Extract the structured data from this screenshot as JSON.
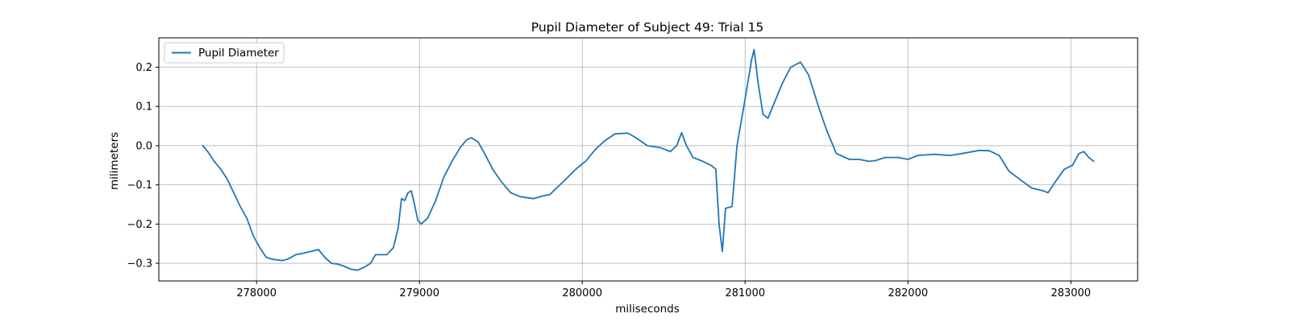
{
  "chart_data": {
    "type": "line",
    "title": "Pupil Diameter of Subject 49: Trial 15",
    "xlabel": "miliseconds",
    "ylabel": "milimeters",
    "xlim": [
      277400,
      283410
    ],
    "ylim": [
      -0.345,
      0.275
    ],
    "x_ticks": [
      278000,
      279000,
      280000,
      281000,
      282000,
      283000
    ],
    "y_ticks": [
      -0.3,
      -0.2,
      -0.1,
      0.0,
      0.1,
      0.2
    ],
    "x_tick_labels": [
      "278000",
      "279000",
      "280000",
      "281000",
      "282000",
      "283000"
    ],
    "y_tick_labels": [
      "−0.3",
      "−0.2",
      "−0.1",
      "0.0",
      "0.1",
      "0.2"
    ],
    "grid": true,
    "legend_position": "top-left",
    "series": [
      {
        "name": "Pupil Diameter",
        "color": "#1f77b4",
        "points": [
          [
            277670,
            0.0
          ],
          [
            277700,
            -0.015
          ],
          [
            277740,
            -0.04
          ],
          [
            277780,
            -0.06
          ],
          [
            277820,
            -0.085
          ],
          [
            277860,
            -0.12
          ],
          [
            277900,
            -0.155
          ],
          [
            277940,
            -0.185
          ],
          [
            277980,
            -0.23
          ],
          [
            278020,
            -0.26
          ],
          [
            278060,
            -0.285
          ],
          [
            278100,
            -0.29
          ],
          [
            278160,
            -0.293
          ],
          [
            278200,
            -0.288
          ],
          [
            278240,
            -0.278
          ],
          [
            278280,
            -0.275
          ],
          [
            278330,
            -0.27
          ],
          [
            278380,
            -0.265
          ],
          [
            278420,
            -0.285
          ],
          [
            278460,
            -0.3
          ],
          [
            278500,
            -0.302
          ],
          [
            278540,
            -0.308
          ],
          [
            278580,
            -0.315
          ],
          [
            278620,
            -0.318
          ],
          [
            278660,
            -0.31
          ],
          [
            278700,
            -0.3
          ],
          [
            278730,
            -0.278
          ],
          [
            278800,
            -0.278
          ],
          [
            278840,
            -0.26
          ],
          [
            278870,
            -0.21
          ],
          [
            278890,
            -0.135
          ],
          [
            278910,
            -0.14
          ],
          [
            278930,
            -0.12
          ],
          [
            278950,
            -0.115
          ],
          [
            278970,
            -0.15
          ],
          [
            278990,
            -0.19
          ],
          [
            279010,
            -0.2
          ],
          [
            279050,
            -0.185
          ],
          [
            279100,
            -0.14
          ],
          [
            279150,
            -0.08
          ],
          [
            279200,
            -0.04
          ],
          [
            279250,
            -0.005
          ],
          [
            279290,
            0.015
          ],
          [
            279320,
            0.02
          ],
          [
            279360,
            0.01
          ],
          [
            279400,
            -0.02
          ],
          [
            279450,
            -0.06
          ],
          [
            279500,
            -0.09
          ],
          [
            279560,
            -0.12
          ],
          [
            279620,
            -0.13
          ],
          [
            279700,
            -0.135
          ],
          [
            279760,
            -0.128
          ],
          [
            279800,
            -0.125
          ],
          [
            279850,
            -0.105
          ],
          [
            279900,
            -0.085
          ],
          [
            279960,
            -0.06
          ],
          [
            280020,
            -0.04
          ],
          [
            280080,
            -0.01
          ],
          [
            280130,
            0.01
          ],
          [
            280200,
            0.03
          ],
          [
            280280,
            0.032
          ],
          [
            280330,
            0.02
          ],
          [
            280400,
            0.0
          ],
          [
            280480,
            -0.005
          ],
          [
            280540,
            -0.015
          ],
          [
            280580,
            0.0
          ],
          [
            280610,
            0.033
          ],
          [
            280640,
            0.0
          ],
          [
            280680,
            -0.03
          ],
          [
            280740,
            -0.04
          ],
          [
            280790,
            -0.05
          ],
          [
            280820,
            -0.06
          ],
          [
            280840,
            -0.2
          ],
          [
            280860,
            -0.27
          ],
          [
            280880,
            -0.16
          ],
          [
            280920,
            -0.155
          ],
          [
            280950,
            0.0
          ],
          [
            281000,
            0.12
          ],
          [
            281040,
            0.22
          ],
          [
            281055,
            0.245
          ],
          [
            281080,
            0.16
          ],
          [
            281110,
            0.08
          ],
          [
            281140,
            0.07
          ],
          [
            281180,
            0.11
          ],
          [
            281230,
            0.16
          ],
          [
            281280,
            0.2
          ],
          [
            281340,
            0.213
          ],
          [
            281390,
            0.18
          ],
          [
            281450,
            0.1
          ],
          [
            281500,
            0.04
          ],
          [
            281560,
            -0.02
          ],
          [
            281640,
            -0.035
          ],
          [
            281700,
            -0.035
          ],
          [
            281760,
            -0.04
          ],
          [
            281800,
            -0.038
          ],
          [
            281860,
            -0.03
          ],
          [
            281940,
            -0.03
          ],
          [
            282000,
            -0.035
          ],
          [
            282060,
            -0.025
          ],
          [
            282160,
            -0.022
          ],
          [
            282260,
            -0.025
          ],
          [
            282360,
            -0.018
          ],
          [
            282440,
            -0.012
          ],
          [
            282500,
            -0.013
          ],
          [
            282560,
            -0.025
          ],
          [
            282620,
            -0.065
          ],
          [
            282700,
            -0.09
          ],
          [
            282760,
            -0.108
          ],
          [
            282830,
            -0.115
          ],
          [
            282860,
            -0.12
          ],
          [
            282900,
            -0.095
          ],
          [
            282960,
            -0.06
          ],
          [
            283010,
            -0.05
          ],
          [
            283050,
            -0.02
          ],
          [
            283080,
            -0.015
          ],
          [
            283110,
            -0.03
          ],
          [
            283140,
            -0.04
          ]
        ]
      }
    ]
  }
}
